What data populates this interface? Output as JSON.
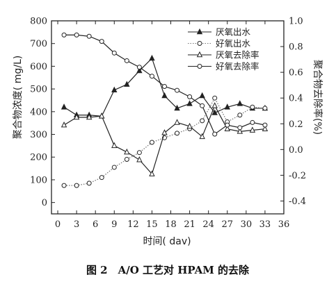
{
  "chart_data": {
    "type": "line",
    "caption": "图 2　A/O 工艺对 HPAM 的去除",
    "xlabel": "时间( dav)",
    "ylabel_left": "聚合物浓度( mg/L)",
    "ylabel_right": "聚合物去除率(%)",
    "xlim": [
      -1,
      36
    ],
    "xticks": [
      0,
      3,
      6,
      9,
      12,
      15,
      18,
      21,
      24,
      27,
      30,
      33,
      36
    ],
    "ylim_left": [
      -50,
      800
    ],
    "yticks_left": [
      0,
      100,
      200,
      300,
      400,
      500,
      600,
      700,
      800
    ],
    "ylim_right": [
      -0.5,
      1.0
    ],
    "yticks_right": [
      "-0.4",
      "-0.2",
      "0.0",
      "0.2",
      "0.4",
      "0.6",
      "0.8",
      "1.0"
    ],
    "legend_position": "top-right",
    "series": [
      {
        "name": "厌氧出水",
        "axis": "left",
        "marker": "filled-triangle",
        "line": "solid",
        "x": [
          1,
          3,
          5,
          7,
          9,
          11,
          13,
          15,
          17,
          19,
          21,
          23,
          25,
          27,
          29,
          31,
          33
        ],
        "y": [
          420,
          385,
          385,
          380,
          495,
          520,
          580,
          635,
          470,
          415,
          435,
          470,
          395,
          420,
          435,
          415,
          415
        ]
      },
      {
        "name": "好氧出水",
        "axis": "left",
        "marker": "hollow-circle",
        "line": "dotted",
        "x": [
          1,
          3,
          5,
          7,
          9,
          11,
          13,
          15,
          17,
          19,
          21,
          23,
          25,
          27,
          29,
          31,
          33
        ],
        "y": [
          75,
          75,
          85,
          110,
          155,
          190,
          220,
          265,
          285,
          305,
          325,
          360,
          460,
          355,
          385,
          420,
          415
        ]
      },
      {
        "name": "厌氧去除率",
        "axis": "right",
        "marker": "hollow-triangle",
        "line": "solid",
        "x": [
          1,
          3,
          5,
          7,
          9,
          11,
          13,
          15,
          17,
          19,
          21,
          23,
          25,
          27,
          29,
          31,
          33
        ],
        "y": [
          0.19,
          0.25,
          0.25,
          0.26,
          0.03,
          -0.02,
          -0.08,
          -0.19,
          0.13,
          0.21,
          0.18,
          0.1,
          0.34,
          0.16,
          0.14,
          0.15,
          0.16
        ]
      },
      {
        "name": "好氧去除率",
        "axis": "right",
        "marker": "hollow-circle",
        "line": "solid",
        "x": [
          1,
          3,
          5,
          7,
          9,
          11,
          13,
          15,
          17,
          19,
          21,
          23,
          25,
          27,
          29,
          31,
          33
        ],
        "y": [
          0.89,
          0.89,
          0.88,
          0.84,
          0.75,
          0.69,
          0.64,
          0.57,
          0.49,
          0.46,
          0.41,
          0.34,
          0.12,
          0.19,
          0.17,
          0.21,
          0.19
        ]
      }
    ]
  }
}
